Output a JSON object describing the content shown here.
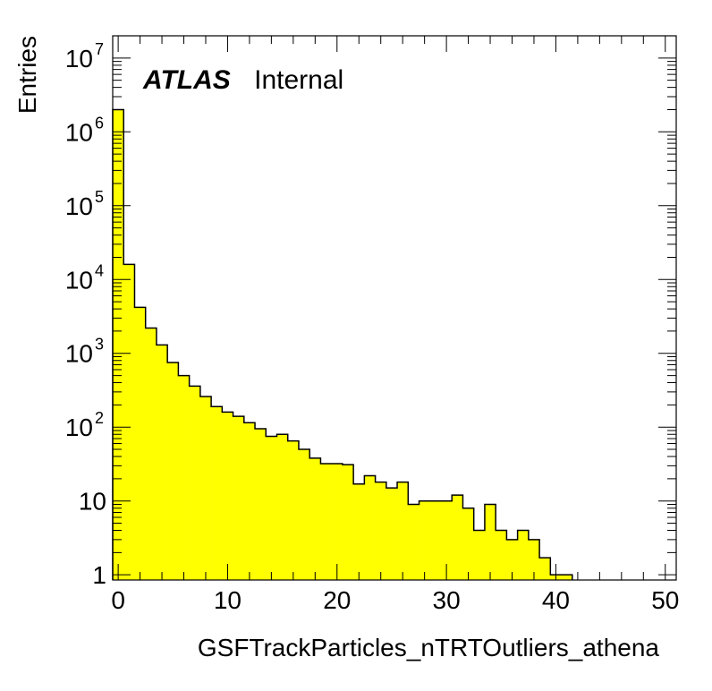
{
  "chart_data": {
    "type": "bar",
    "style": "filled-histogram",
    "fill_color": "#ffff00",
    "edge_color": "#000000",
    "xlabel": "GSFTrackParticles_nTRTOutliers_athena",
    "ylabel": "Entries",
    "xlim": [
      -0.5,
      51
    ],
    "ylim": [
      0.85,
      20000000
    ],
    "yscale": "log",
    "grid": false,
    "legend": "none",
    "annotation": {
      "bold_italic": "ATLAS",
      "normal": "Internal"
    },
    "x_ticks": [
      "0",
      "10",
      "20",
      "30",
      "40",
      "50"
    ],
    "y_ticks": [
      {
        "base": "1",
        "exp": ""
      },
      {
        "base": "10",
        "exp": ""
      },
      {
        "base": "10",
        "exp": "2"
      },
      {
        "base": "10",
        "exp": "3"
      },
      {
        "base": "10",
        "exp": "4"
      },
      {
        "base": "10",
        "exp": "5"
      },
      {
        "base": "10",
        "exp": "6"
      },
      {
        "base": "10",
        "exp": "7"
      }
    ],
    "bins": {
      "start": -0.5,
      "width": 1,
      "values": [
        2000000,
        16000,
        4200,
        2200,
        1300,
        750,
        500,
        360,
        260,
        190,
        160,
        140,
        115,
        95,
        75,
        80,
        65,
        50,
        38,
        32,
        32,
        31,
        17,
        22,
        18,
        15,
        18,
        9,
        10,
        10,
        10,
        12,
        8,
        4,
        9,
        4,
        3,
        4,
        3,
        1.7,
        1,
        1
      ]
    }
  }
}
